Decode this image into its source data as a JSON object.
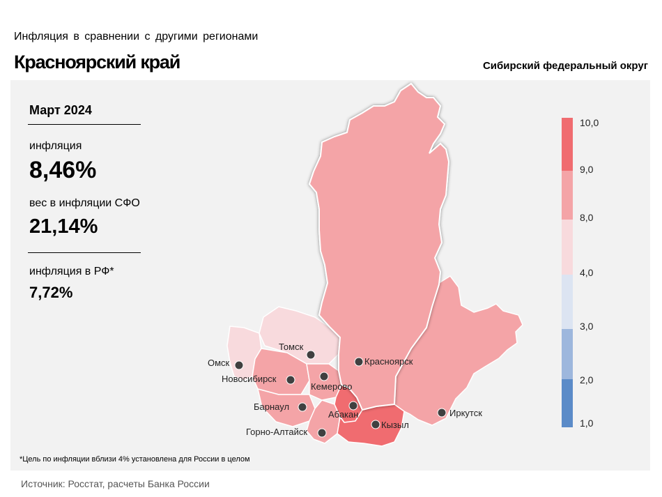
{
  "header": {
    "supertitle": "Инфляция в сравнении с другими регионами",
    "title": "Красноярский край",
    "district": "Сибирский федеральный округ"
  },
  "stats": {
    "period": "Март 2024",
    "inflation_label": "инфляция",
    "inflation_value": "8,46%",
    "weight_label": "вес в инфляции СФО",
    "weight_value": "21,14%",
    "rf_label": "инфляция в РФ*",
    "rf_value": "7,72%"
  },
  "map": {
    "highlighted_region": "Красноярский край",
    "cities": [
      {
        "name": "Омск"
      },
      {
        "name": "Томск"
      },
      {
        "name": "Новосибирск"
      },
      {
        "name": "Кемерово"
      },
      {
        "name": "Красноярск"
      },
      {
        "name": "Барнаул"
      },
      {
        "name": "Абакан"
      },
      {
        "name": "Горно-Алтайск"
      },
      {
        "name": "Кызыл"
      },
      {
        "name": "Иркутск"
      }
    ],
    "region_colors": {
      "high": "#f06c70",
      "mid": "#f4a4a7",
      "low": "#f8dadd"
    }
  },
  "legend": {
    "ticks": [
      "10,0",
      "9,0",
      "8,0",
      "4,0",
      "3,0",
      "2,0",
      "1,0"
    ],
    "bands": [
      {
        "color": "#f06c70"
      },
      {
        "color": "#f4a4a7"
      },
      {
        "color": "#f8dadd"
      },
      {
        "color": "#dce4f2"
      },
      {
        "color": "#9db7dd"
      },
      {
        "color": "#5b8bc8"
      }
    ]
  },
  "footnote": "*Цель по инфляции вблизи 4% установлена для России в целом",
  "source": "Источник: Росстат, расчеты Банка России"
}
